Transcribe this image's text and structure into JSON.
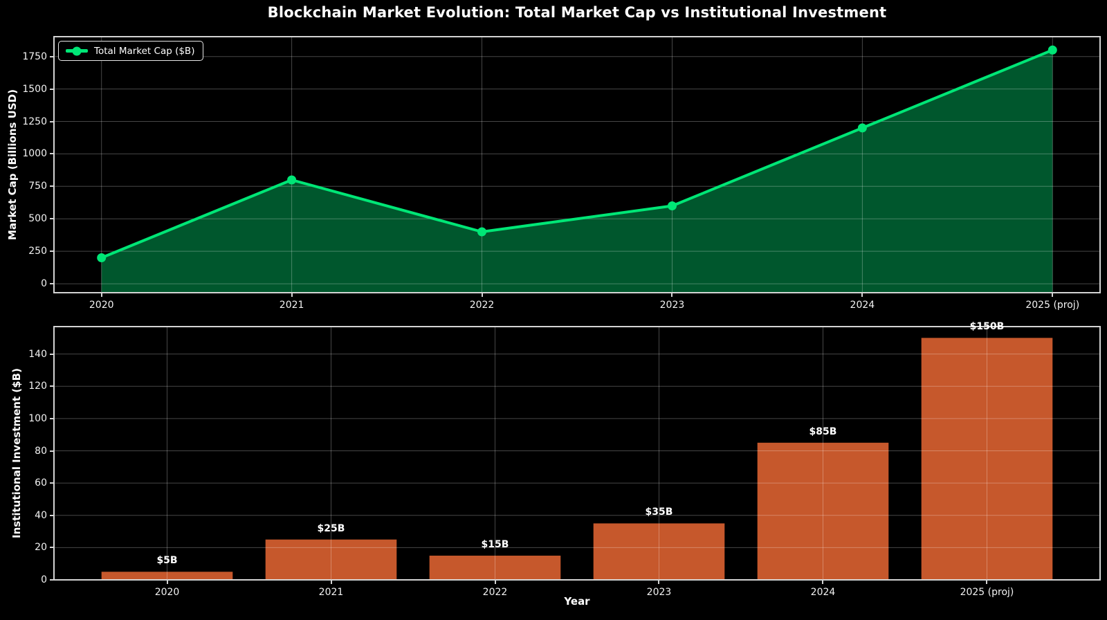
{
  "title": "Blockchain Market Evolution: Total Market Cap vs Institutional Investment",
  "colors": {
    "background": "#000000",
    "line": "#00e676",
    "area_fill": "rgba(0,230,118,0.38)",
    "bar": "#c6582c",
    "grid": "rgba(255,255,255,0.28)",
    "spine": "#d4d4d4",
    "text": "#ffffff"
  },
  "chart_data": [
    {
      "type": "area",
      "categories": [
        "2020",
        "2021",
        "2022",
        "2023",
        "2024",
        "2025 (proj)"
      ],
      "series": [
        {
          "name": "Total Market Cap ($B)",
          "values": [
            200,
            800,
            400,
            600,
            1200,
            1800
          ]
        }
      ],
      "title": "",
      "xlabel": "",
      "ylabel": "Market Cap (Billions USD)",
      "yticks": [
        0,
        250,
        500,
        750,
        1000,
        1250,
        1500,
        1750
      ],
      "ylim": [
        -69,
        1903
      ],
      "x_pad": 0.25,
      "grid": true,
      "legend_position": "upper left",
      "marker": "circle"
    },
    {
      "type": "bar",
      "categories": [
        "2020",
        "2021",
        "2022",
        "2023",
        "2024",
        "2025 (proj)"
      ],
      "values": [
        5,
        25,
        15,
        35,
        85,
        150
      ],
      "bar_labels": [
        "$5B",
        "$25B",
        "$15B",
        "$35B",
        "$85B",
        "$150B"
      ],
      "title": "",
      "xlabel": "Year",
      "ylabel": "Institutional Investment ($B)",
      "yticks": [
        0,
        20,
        40,
        60,
        80,
        100,
        120,
        140
      ],
      "ylim": [
        0,
        157
      ],
      "x_pad": 0.69,
      "bar_width_frac": 0.8,
      "grid": true,
      "legend_position": "none"
    }
  ]
}
